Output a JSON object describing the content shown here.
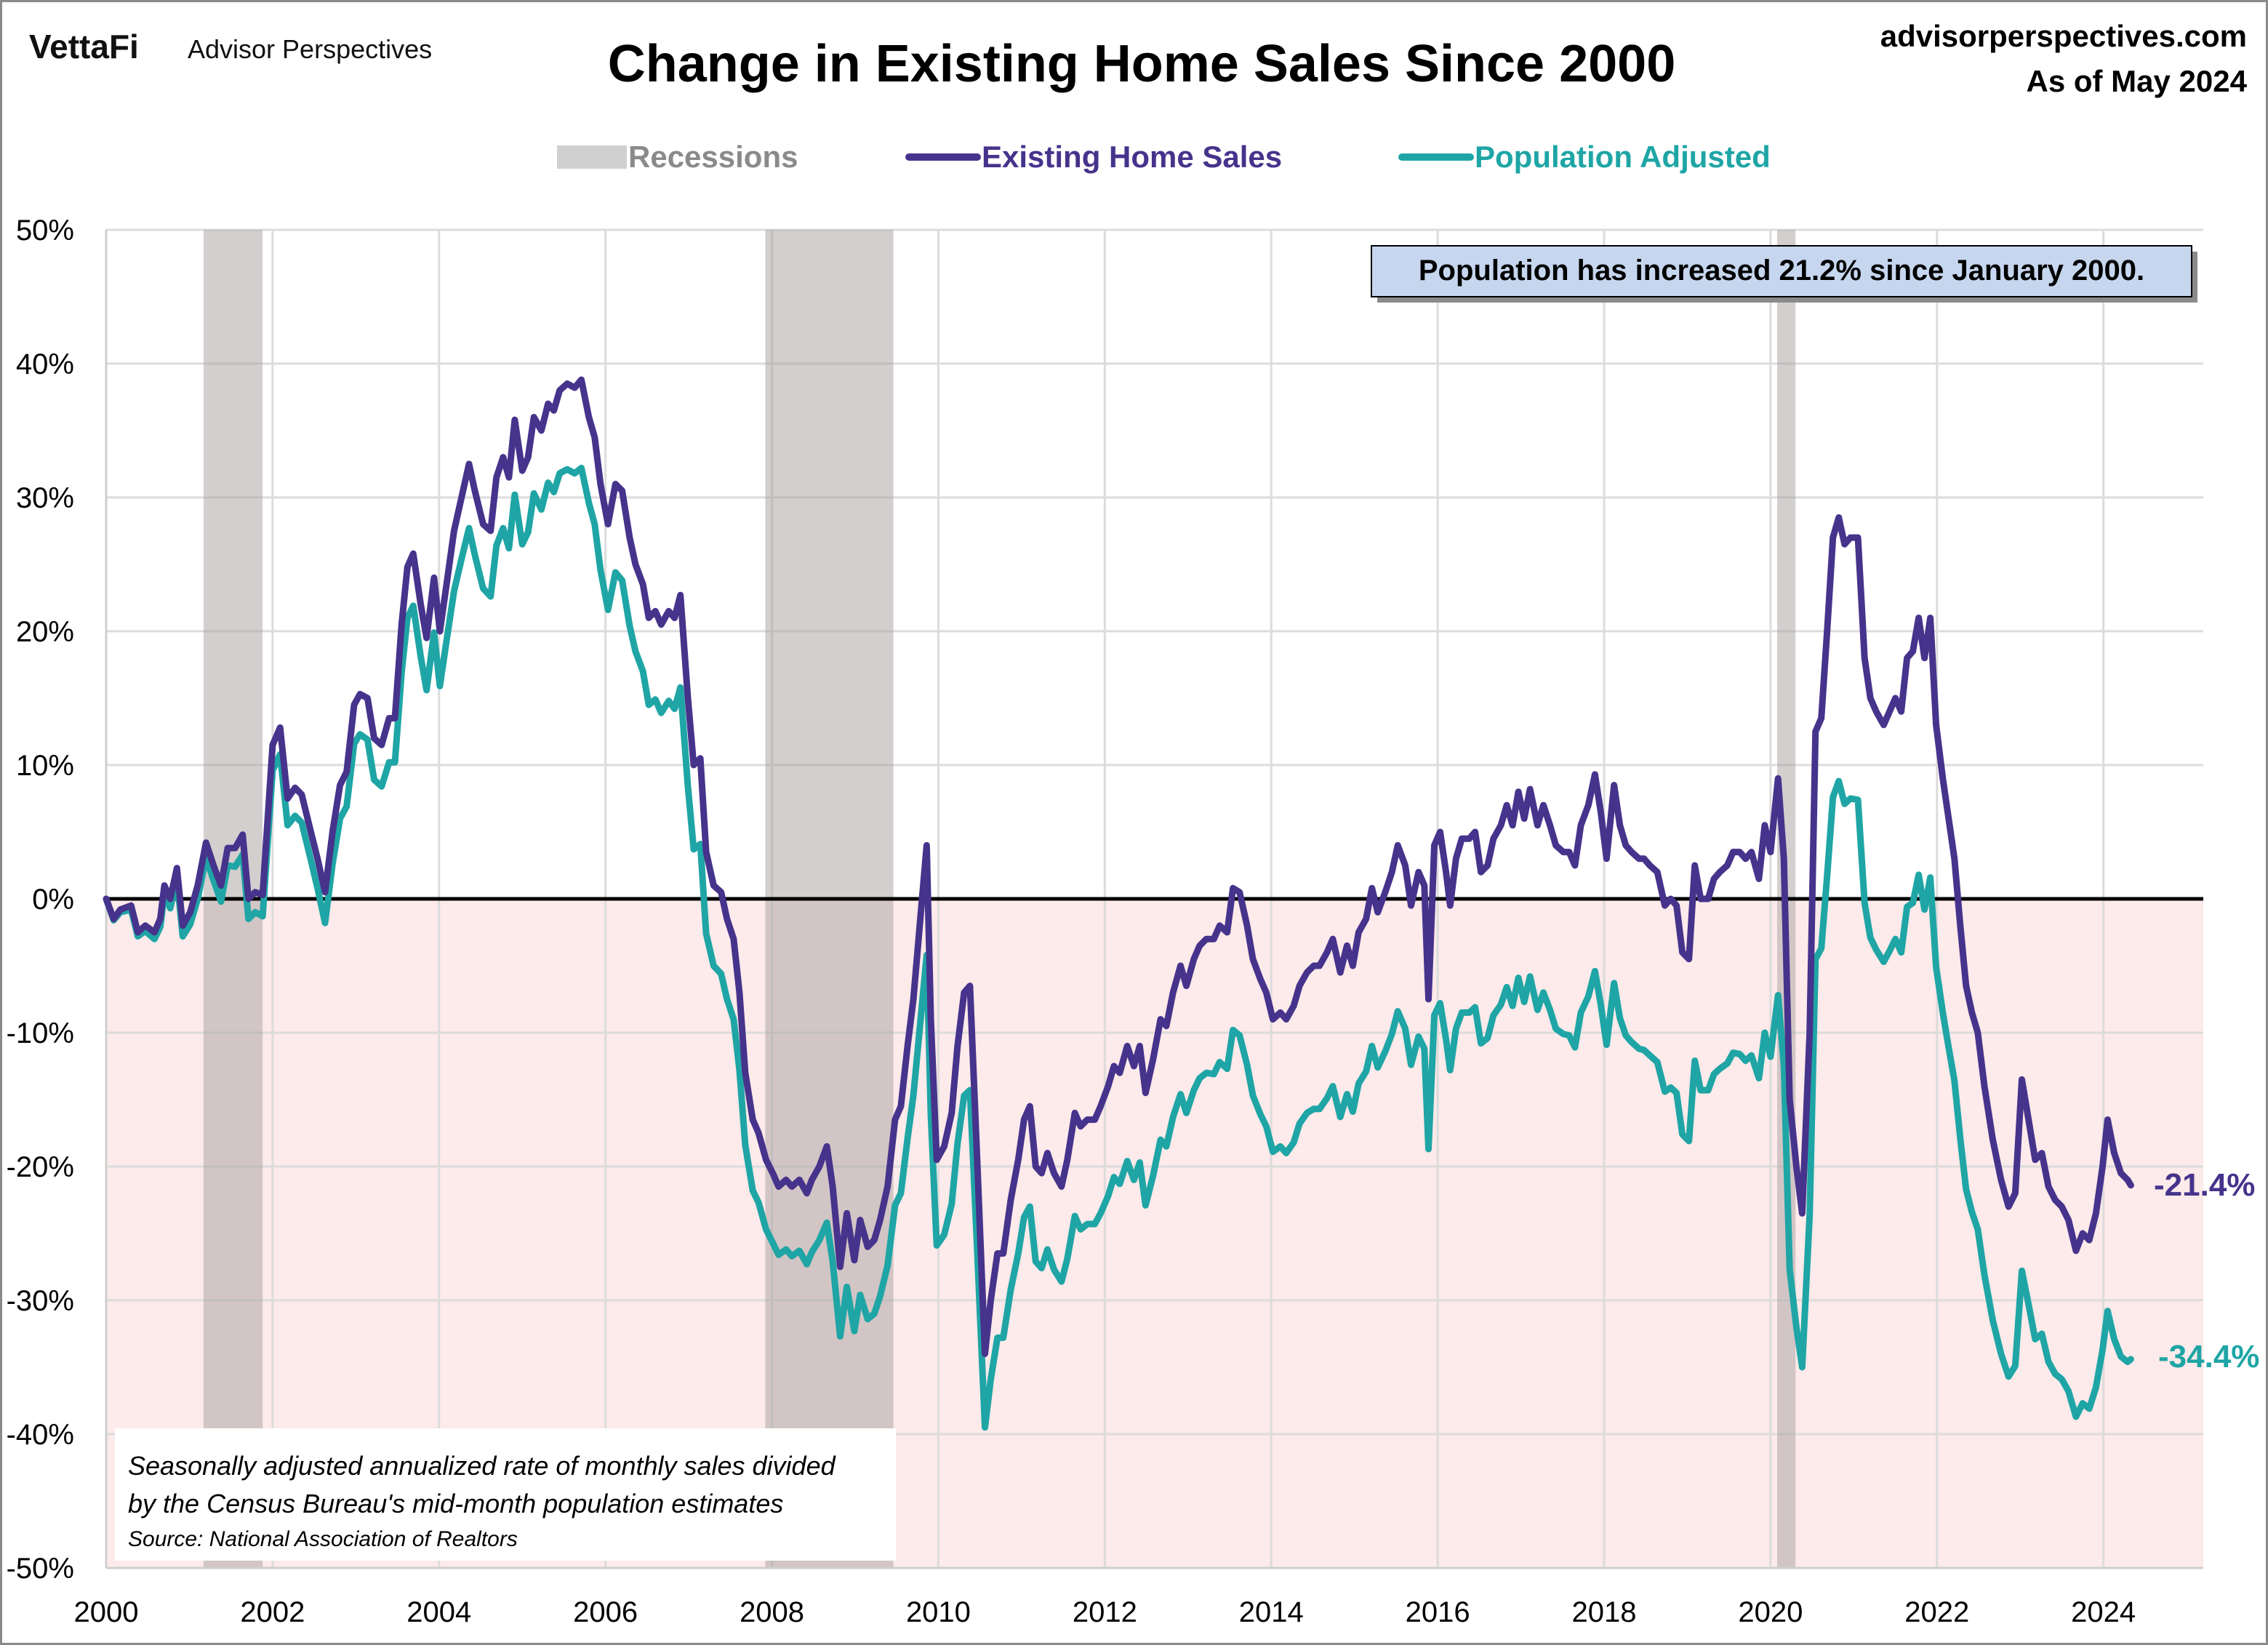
{
  "header": {
    "logo_brand": "VettaFi",
    "logo_sub": "Advisor Perspectives",
    "website": "advisorperspectives.com",
    "as_of": "As of May 2024"
  },
  "legend": {
    "recessions": "Recessions",
    "existing": "Existing Home Sales",
    "population": "Population Adjusted"
  },
  "annotation": "Population has increased 21.2% since January 2000.",
  "footnote": {
    "line1": "Seasonally adjusted annualized rate of monthly sales divided",
    "line2": "by the Census Bureau's mid-month population estimates",
    "source": "Source: National Association of Realtors"
  },
  "end_labels": {
    "existing": "-21.4%",
    "population": "-34.4%"
  },
  "colors": {
    "existing": "#46338c",
    "population": "#1fa5a5",
    "recession": "#c8c8c8",
    "negative_fill": "#fdeaea",
    "annotation_bg": "#c6d6ee"
  },
  "chart_data": {
    "type": "line",
    "title": "Change in Existing Home Sales Since 2000",
    "xlabel": "",
    "ylabel": "",
    "xlim": [
      2000,
      2025.2
    ],
    "ylim": [
      -50,
      50
    ],
    "grid": true,
    "legend_position": "top",
    "x_ticks": [
      "2000",
      "2002",
      "2004",
      "2006",
      "2008",
      "2010",
      "2012",
      "2014",
      "2016",
      "2018",
      "2020",
      "2022",
      "2024"
    ],
    "y_ticks": [
      "50%",
      "40%",
      "30%",
      "20%",
      "10%",
      "0%",
      "-10%",
      "-20%",
      "-30%",
      "-40%",
      "-50%"
    ],
    "recessions": [
      [
        2001.17,
        2001.88
      ],
      [
        2007.92,
        2009.46
      ],
      [
        2020.08,
        2020.3
      ]
    ],
    "x": [
      2000,
      2000.09,
      2000.17,
      2000.3,
      2000.38,
      2000.47,
      2000.58,
      2000.65,
      2000.7,
      2000.77,
      2000.85,
      2000.92,
      2001.01,
      2001.1,
      2001.2,
      2001.29,
      2001.38,
      2001.46,
      2001.55,
      2001.64,
      2001.71,
      2001.79,
      2001.88,
      2002,
      2002.09,
      2002.18,
      2002.27,
      2002.35,
      2002.46,
      2002.54,
      2002.63,
      2002.72,
      2002.81,
      2002.89,
      2002.98,
      2003.05,
      2003.14,
      2003.22,
      2003.31,
      2003.4,
      2003.47,
      2003.55,
      2003.62,
      2003.69,
      2003.78,
      2003.85,
      2003.94,
      2004.01,
      2004.09,
      2004.18,
      2004.27,
      2004.36,
      2004.43,
      2004.53,
      2004.62,
      2004.69,
      2004.77,
      2004.84,
      2004.91,
      2005,
      2005.07,
      2005.14,
      2005.23,
      2005.31,
      2005.38,
      2005.45,
      2005.54,
      2005.63,
      2005.71,
      2005.8,
      2005.87,
      2005.94,
      2006.03,
      2006.12,
      2006.2,
      2006.29,
      2006.36,
      2006.45,
      2006.52,
      2006.6,
      2006.67,
      2006.76,
      2006.83,
      2006.9,
      2006.99,
      2007.06,
      2007.14,
      2007.21,
      2007.3,
      2007.39,
      2007.46,
      2007.54,
      2007.61,
      2007.68,
      2007.77,
      2007.84,
      2007.93,
      2008.01,
      2008.08,
      2008.17,
      2008.24,
      2008.33,
      2008.42,
      2008.48,
      2008.57,
      2008.66,
      2008.73,
      2008.82,
      2008.9,
      2008.99,
      2009.06,
      2009.15,
      2009.23,
      2009.3,
      2009.39,
      2009.48,
      2009.55,
      2009.63,
      2009.7,
      2009.79,
      2009.86,
      2009.91,
      2009.98,
      2010.07,
      2010.16,
      2010.23,
      2010.31,
      2010.38,
      2010.47,
      2010.56,
      2010.63,
      2010.71,
      2010.78,
      2010.87,
      2010.96,
      2011.03,
      2011.1,
      2011.17,
      2011.24,
      2011.31,
      2011.39,
      2011.48,
      2011.55,
      2011.64,
      2011.71,
      2011.79,
      2011.88,
      2011.95,
      2012.04,
      2012.11,
      2012.18,
      2012.27,
      2012.35,
      2012.42,
      2012.49,
      2012.58,
      2012.67,
      2012.74,
      2012.82,
      2012.91,
      2012.98,
      2013.07,
      2013.14,
      2013.22,
      2013.31,
      2013.38,
      2013.47,
      2013.54,
      2013.62,
      2013.71,
      2013.78,
      2013.87,
      2013.94,
      2014.02,
      2014.11,
      2014.18,
      2014.27,
      2014.34,
      2014.43,
      2014.51,
      2014.58,
      2014.67,
      2014.74,
      2014.83,
      2014.91,
      2014.98,
      2015.05,
      2015.14,
      2015.21,
      2015.28,
      2015.37,
      2015.45,
      2015.52,
      2015.61,
      2015.68,
      2015.77,
      2015.84,
      2015.89,
      2015.96,
      2016.03,
      2016.1,
      2016.15,
      2016.22,
      2016.29,
      2016.38,
      2016.45,
      2016.52,
      2016.6,
      2016.67,
      2016.76,
      2016.83,
      2016.9,
      2016.97,
      2017.04,
      2017.11,
      2017.2,
      2017.27,
      2017.35,
      2017.42,
      2017.51,
      2017.58,
      2017.65,
      2017.72,
      2017.81,
      2017.89,
      2017.96,
      2018.03,
      2018.12,
      2018.19,
      2018.26,
      2018.33,
      2018.42,
      2018.48,
      2018.55,
      2018.64,
      2018.73,
      2018.8,
      2018.87,
      2018.94,
      2019.02,
      2019.09,
      2019.16,
      2019.25,
      2019.32,
      2019.39,
      2019.48,
      2019.55,
      2019.63,
      2019.7,
      2019.77,
      2019.86,
      2019.93,
      2020,
      2020.09,
      2020.16,
      2020.23,
      2020.31,
      2020.38,
      2020.47,
      2020.54,
      2020.61,
      2020.68,
      2020.75,
      2020.82,
      2020.89,
      2020.96,
      2021.05,
      2021.13,
      2021.2,
      2021.27,
      2021.36,
      2021.43,
      2021.5,
      2021.57,
      2021.64,
      2021.71,
      2021.78,
      2021.85,
      2021.92,
      2021.99,
      2022.07,
      2022.14,
      2022.21,
      2022.28,
      2022.35,
      2022.42,
      2022.49,
      2022.57,
      2022.67,
      2022.77,
      2022.86,
      2022.94,
      2023.02,
      2023.1,
      2023.18,
      2023.26,
      2023.34,
      2023.42,
      2023.5,
      2023.58,
      2023.67,
      2023.75,
      2023.83,
      2023.91,
      2023.99,
      2024.05,
      2024.13,
      2024.21,
      2024.29,
      2024.33
    ],
    "series": [
      {
        "name": "Existing Home Sales",
        "color": "#46338c",
        "values": [
          0,
          -1.5,
          -0.8,
          -0.5,
          -2.5,
          -2,
          -2.5,
          -1.5,
          1,
          0,
          2.3,
          -2,
          -1,
          1,
          4.2,
          2.5,
          1,
          3.8,
          3.8,
          4.8,
          0,
          0.5,
          0.3,
          11.5,
          12.8,
          7.5,
          8.3,
          7.8,
          5,
          3,
          0.5,
          5,
          8.5,
          9.5,
          14.5,
          15.3,
          15,
          12,
          11.5,
          13.5,
          13.5,
          20.5,
          24.8,
          25.8,
          22,
          19.5,
          24,
          20,
          23.5,
          27.5,
          30,
          32.5,
          30.5,
          28,
          27.5,
          31.5,
          33,
          31.5,
          35.8,
          32,
          33,
          36,
          35,
          37,
          36.5,
          38,
          38.5,
          38.2,
          38.8,
          36,
          34.5,
          31,
          28,
          31,
          30.5,
          27,
          25,
          23.5,
          21,
          21.5,
          20.5,
          21.5,
          21,
          22.7,
          15,
          10,
          10.5,
          3.5,
          1,
          0.5,
          -1.5,
          -3,
          -7,
          -13,
          -16.5,
          -17.5,
          -19.5,
          -20.5,
          -21.5,
          -21,
          -21.5,
          -21,
          -22,
          -21,
          -20,
          -18.5,
          -21.5,
          -27.5,
          -23.5,
          -27,
          -24,
          -26,
          -25.5,
          -24,
          -21.5,
          -16.5,
          -15.5,
          -11,
          -7.5,
          -1,
          4,
          -9,
          -19.5,
          -18.5,
          -16,
          -11,
          -7,
          -6.5,
          -20,
          -34,
          -30,
          -26.5,
          -26.5,
          -22.5,
          -19.5,
          -16.5,
          -15.5,
          -20,
          -20.5,
          -19,
          -20.5,
          -21.5,
          -19.5,
          -16,
          -17,
          -16.5,
          -16.5,
          -15.5,
          -14,
          -12.5,
          -13,
          -11,
          -12.5,
          -11,
          -14.5,
          -12,
          -9,
          -9.5,
          -7,
          -5,
          -6.5,
          -4.5,
          -3.5,
          -3,
          -3,
          -2,
          -2.5,
          0.8,
          0.5,
          -2,
          -4.5,
          -6,
          -7,
          -9,
          -8.5,
          -9,
          -8,
          -6.5,
          -5.5,
          -5,
          -5,
          -4,
          -3,
          -5.5,
          -3.5,
          -5,
          -2.5,
          -1.5,
          0.8,
          -1,
          0.5,
          2,
          4,
          2.5,
          -0.5,
          2,
          1,
          -7.5,
          4,
          5,
          2,
          -0.5,
          3,
          4.5,
          4.5,
          5,
          2,
          2.5,
          4.5,
          5.5,
          7,
          5.5,
          8,
          6,
          8.2,
          5.5,
          7,
          5.5,
          4,
          3.5,
          3.5,
          2.5,
          5.5,
          7,
          9.3,
          6.5,
          3,
          8.5,
          5.5,
          4,
          3.5,
          3,
          3,
          2.5,
          2,
          -0.5,
          0,
          -0.5,
          -4,
          -4.5,
          2.5,
          0,
          0,
          1.5,
          2,
          2.5,
          3.5,
          3.5,
          3,
          3.5,
          1.5,
          5.5,
          3.5,
          9,
          3,
          -15,
          -20,
          -23.5,
          -10,
          12.5,
          13.5,
          20,
          27,
          28.5,
          26.5,
          27,
          27,
          18,
          15,
          14,
          13,
          14,
          15,
          14,
          18,
          18.5,
          21,
          18,
          21,
          13,
          9,
          6,
          3,
          -2,
          -6.5,
          -8.5,
          -10,
          -14,
          -18,
          -21,
          -23,
          -22,
          -13.5,
          -16.5,
          -19.5,
          -19,
          -21.5,
          -22.5,
          -23,
          -24,
          -26.3,
          -25,
          -25.5,
          -23.5,
          -20,
          -16.5,
          -19,
          -20.5,
          -21,
          -21.4
        ]
      },
      {
        "name": "Population Adjusted",
        "color": "#1fa5a5",
        "values": [
          0,
          -1.6,
          -1,
          -0.8,
          -2.8,
          -2.4,
          -3,
          -2.1,
          0.4,
          -0.7,
          1.5,
          -2.8,
          -1.9,
          0,
          3.1,
          1.4,
          -0.2,
          2.5,
          2.4,
          3.3,
          -1.5,
          -1,
          -1.3,
          9.6,
          10.8,
          5.5,
          6.2,
          5.7,
          2.9,
          0.8,
          -1.8,
          2.6,
          6,
          6.9,
          11.6,
          12.3,
          11.9,
          8.9,
          8.4,
          10.2,
          10.2,
          16.9,
          21,
          21.9,
          18.1,
          15.6,
          19.9,
          15.9,
          19.3,
          23,
          25.4,
          27.7,
          25.7,
          23.2,
          22.6,
          26.4,
          27.7,
          26.2,
          30.2,
          26.5,
          27.4,
          30.3,
          29.1,
          31.1,
          30.4,
          31.8,
          32.1,
          31.8,
          32.2,
          29.6,
          28,
          24.6,
          21.6,
          24.4,
          23.8,
          20.4,
          18.5,
          17,
          14.5,
          14.9,
          13.9,
          14.8,
          14.2,
          15.8,
          8.4,
          3.7,
          4.1,
          -2.6,
          -5,
          -5.6,
          -7.5,
          -9,
          -12.8,
          -18.4,
          -21.8,
          -22.7,
          -24.7,
          -25.7,
          -26.6,
          -26.2,
          -26.7,
          -26.3,
          -27.3,
          -26.4,
          -25.5,
          -24.2,
          -27.1,
          -32.7,
          -29,
          -32.3,
          -29.6,
          -31.4,
          -31,
          -29.7,
          -27.4,
          -22.9,
          -22,
          -17.9,
          -14.7,
          -8.8,
          -4.2,
          -16.2,
          -25.9,
          -25.1,
          -22.8,
          -18.3,
          -14.7,
          -14.3,
          -26.7,
          -39.5,
          -35.9,
          -32.8,
          -32.8,
          -29.2,
          -26.5,
          -23.8,
          -23,
          -27.1,
          -27.6,
          -26.2,
          -27.7,
          -28.6,
          -26.9,
          -23.7,
          -24.7,
          -24.3,
          -24.3,
          -23.5,
          -22.2,
          -20.8,
          -21.3,
          -19.6,
          -21,
          -19.7,
          -22.9,
          -20.7,
          -18,
          -18.5,
          -16.3,
          -14.6,
          -16,
          -14.3,
          -13.4,
          -13,
          -13.1,
          -12.2,
          -12.7,
          -9.8,
          -10.2,
          -12.4,
          -14.7,
          -16.1,
          -17,
          -18.9,
          -18.5,
          -19,
          -18.2,
          -16.8,
          -16,
          -15.7,
          -15.7,
          -14.9,
          -14,
          -16.3,
          -14.6,
          -15.9,
          -13.8,
          -12.9,
          -11,
          -12.6,
          -11.4,
          -10.1,
          -8.4,
          -9.7,
          -12.4,
          -10.3,
          -11.2,
          -18.7,
          -8.7,
          -7.8,
          -10.5,
          -12.8,
          -9.7,
          -8.5,
          -8.5,
          -8.1,
          -10.8,
          -10.4,
          -8.7,
          -7.9,
          -6.6,
          -8,
          -5.9,
          -7.7,
          -5.8,
          -8.3,
          -7,
          -8.3,
          -9.7,
          -10.1,
          -10.2,
          -11.1,
          -8.5,
          -7.3,
          -5.4,
          -7.9,
          -10.9,
          -6.3,
          -8.9,
          -10.2,
          -10.7,
          -11.2,
          -11.3,
          -11.7,
          -12.2,
          -14.4,
          -14.1,
          -14.5,
          -17.6,
          -18.1,
          -12.1,
          -14.3,
          -14.3,
          -13.1,
          -12.7,
          -12.3,
          -11.5,
          -11.6,
          -12.1,
          -11.7,
          -13.4,
          -10,
          -11.8,
          -7.2,
          -12.4,
          -27.7,
          -32,
          -35,
          -23.6,
          -4.5,
          -3.7,
          1.7,
          7.6,
          8.8,
          7.1,
          7.5,
          7.4,
          -0.3,
          -2.9,
          -3.8,
          -4.7,
          -3.9,
          -3,
          -4,
          -0.6,
          -0.3,
          1.8,
          -0.8,
          1.6,
          -5.1,
          -8.5,
          -11.1,
          -13.6,
          -17.9,
          -21.7,
          -23.4,
          -24.7,
          -28.1,
          -31.5,
          -34,
          -35.7,
          -34.9,
          -27.8,
          -30.3,
          -32.9,
          -32.5,
          -34.6,
          -35.5,
          -35.9,
          -36.8,
          -38.7,
          -37.7,
          -38.1,
          -36.5,
          -33.7,
          -30.8,
          -32.9,
          -34.2,
          -34.6,
          -34.4
        ]
      }
    ]
  }
}
